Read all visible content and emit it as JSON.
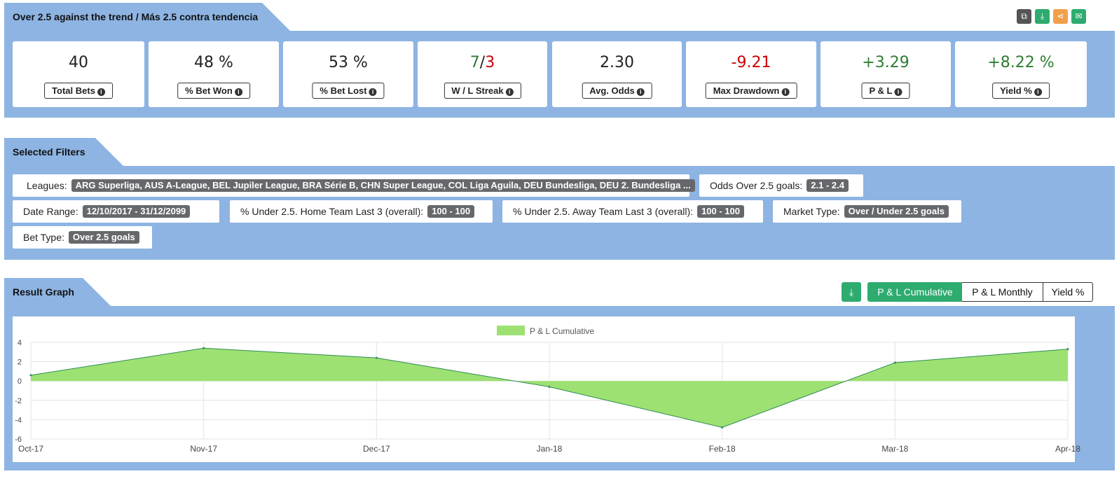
{
  "header": {
    "title": "Over 2.5 against the trend / Más 2.5 contra tendencia",
    "tools": [
      {
        "name": "copy-icon",
        "glyph": "⧉",
        "color": "#555555"
      },
      {
        "name": "download-icon",
        "glyph": "⤓",
        "color": "#2eab6f"
      },
      {
        "name": "share-icon",
        "glyph": "⋖",
        "color": "#f0a04b"
      },
      {
        "name": "mail-icon",
        "glyph": "✉",
        "color": "#2eab6f"
      }
    ]
  },
  "stats": [
    {
      "value": "40",
      "label": "Total Bets"
    },
    {
      "value": "48 %",
      "label": "% Bet Won"
    },
    {
      "value": "53 %",
      "label": "% Bet Lost"
    },
    {
      "value_win": "7",
      "value_sep": "/",
      "value_loss": "3",
      "label": "W / L Streak"
    },
    {
      "value": "2.30",
      "label": "Avg. Odds"
    },
    {
      "value": "-9.21",
      "label": "Max Drawdown"
    },
    {
      "value": "+3.29",
      "label": "P & L"
    },
    {
      "value": "+8.22 %",
      "label": "Yield %"
    }
  ],
  "info_glyph": "i",
  "filters": {
    "title": "Selected Filters",
    "items": [
      {
        "label": "Leagues:",
        "value": "ARG Superliga, AUS A-League, BEL Jupiler League, BRA Série B, CHN Super League, COL Liga Aguila, DEU Bundesliga, DEU 2. Bundesliga ..."
      },
      {
        "label": "Odds Over 2.5 goals:",
        "value": "2.1 - 2.4"
      },
      {
        "label": "Date Range:",
        "value": "12/10/2017 - 31/12/2099"
      },
      {
        "label": "% Under 2.5. Home Team Last 3 (overall):",
        "value": "100 - 100"
      },
      {
        "label": "% Under 2.5. Away Team Last 3 (overall):",
        "value": "100 - 100"
      },
      {
        "label": "Market Type:",
        "value": "Over / Under 2.5 goals"
      },
      {
        "label": "Bet Type:",
        "value": "Over 2.5 goals"
      }
    ]
  },
  "graph": {
    "title": "Result Graph",
    "download_glyph": "⤓",
    "buttons": [
      "P & L Cumulative",
      "P & L Monthly",
      "Yield %"
    ],
    "active_button": "P & L Cumulative"
  },
  "chart_data": {
    "type": "area",
    "x": [
      "Oct-17",
      "Nov-17",
      "Dec-17",
      "Jan-18",
      "Feb-18",
      "Mar-18",
      "Apr-18"
    ],
    "series": [
      {
        "name": "P & L Cumulative",
        "values": [
          0.6,
          3.4,
          2.4,
          -0.6,
          -4.8,
          1.9,
          3.3
        ],
        "color": "#9de172",
        "line_color": "#2e8b57"
      }
    ],
    "ylim": [
      -6,
      4
    ],
    "yticks": [
      4,
      2,
      0,
      -2,
      -4,
      -6
    ],
    "grid": true,
    "legend": "top-center"
  }
}
